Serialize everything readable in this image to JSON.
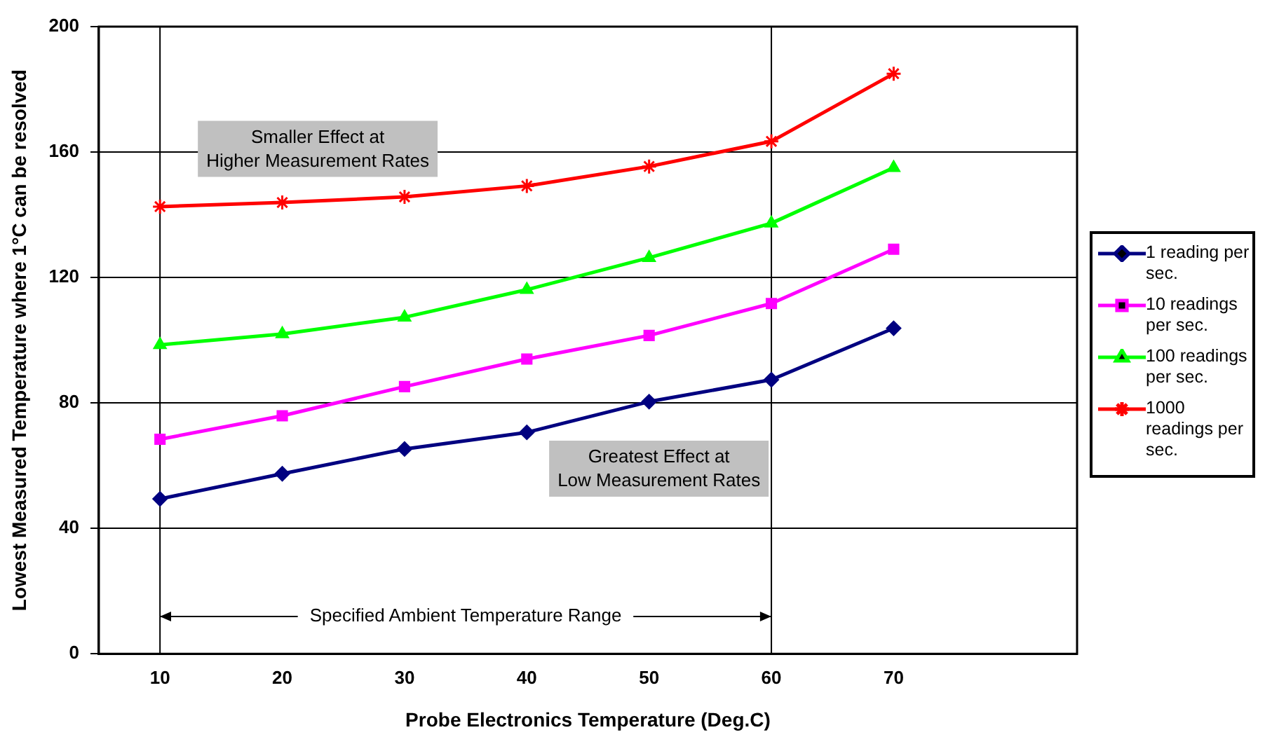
{
  "chart_data": {
    "type": "line",
    "xlabel": "Probe Electronics Temperature (Deg.C)",
    "ylabel": "Lowest Measured Temperature where 1°C can be resolved",
    "x": [
      10,
      20,
      30,
      40,
      50,
      60,
      70
    ],
    "xlim": [
      5,
      85
    ],
    "xticks": [
      10,
      20,
      30,
      40,
      50,
      60,
      70
    ],
    "ylim": [
      0,
      200
    ],
    "yticks": [
      0,
      40,
      80,
      120,
      160,
      200
    ],
    "grid": "y",
    "legend": "right",
    "series": [
      {
        "name": "1 reading per sec.",
        "color": "#000080",
        "marker": "diamond",
        "values": [
          49.4,
          57.4,
          65.3,
          70.6,
          80.4,
          87.4,
          103.8
        ]
      },
      {
        "name": "10 readings per sec.",
        "color": "#ff00ff",
        "marker": "square",
        "values": [
          68.4,
          75.9,
          85.2,
          94,
          101.5,
          111.7,
          129
        ]
      },
      {
        "name": "100 readings per sec.",
        "color": "#00ff00",
        "marker": "triangle",
        "values": [
          98.5,
          102,
          107.3,
          116.1,
          126.3,
          137.3,
          155
        ]
      },
      {
        "name": "1000 readings per sec.",
        "color": "#ff0000",
        "marker": "cross",
        "values": [
          142.6,
          143.9,
          145.7,
          149.2,
          155.4,
          163.4,
          185
        ]
      }
    ],
    "ref_lines": [
      {
        "axis": "x",
        "value": 10,
        "color": "#000000"
      },
      {
        "axis": "x",
        "value": 60,
        "color": "#000000"
      }
    ],
    "annotations": [
      "Smaller Effect at Higher Measurement Rates",
      "Greatest Effect at Low Measurement Rates",
      {
        "text": "Specified Ambient Temperature Range",
        "x": 10,
        "y": 12
      }
    ]
  }
}
